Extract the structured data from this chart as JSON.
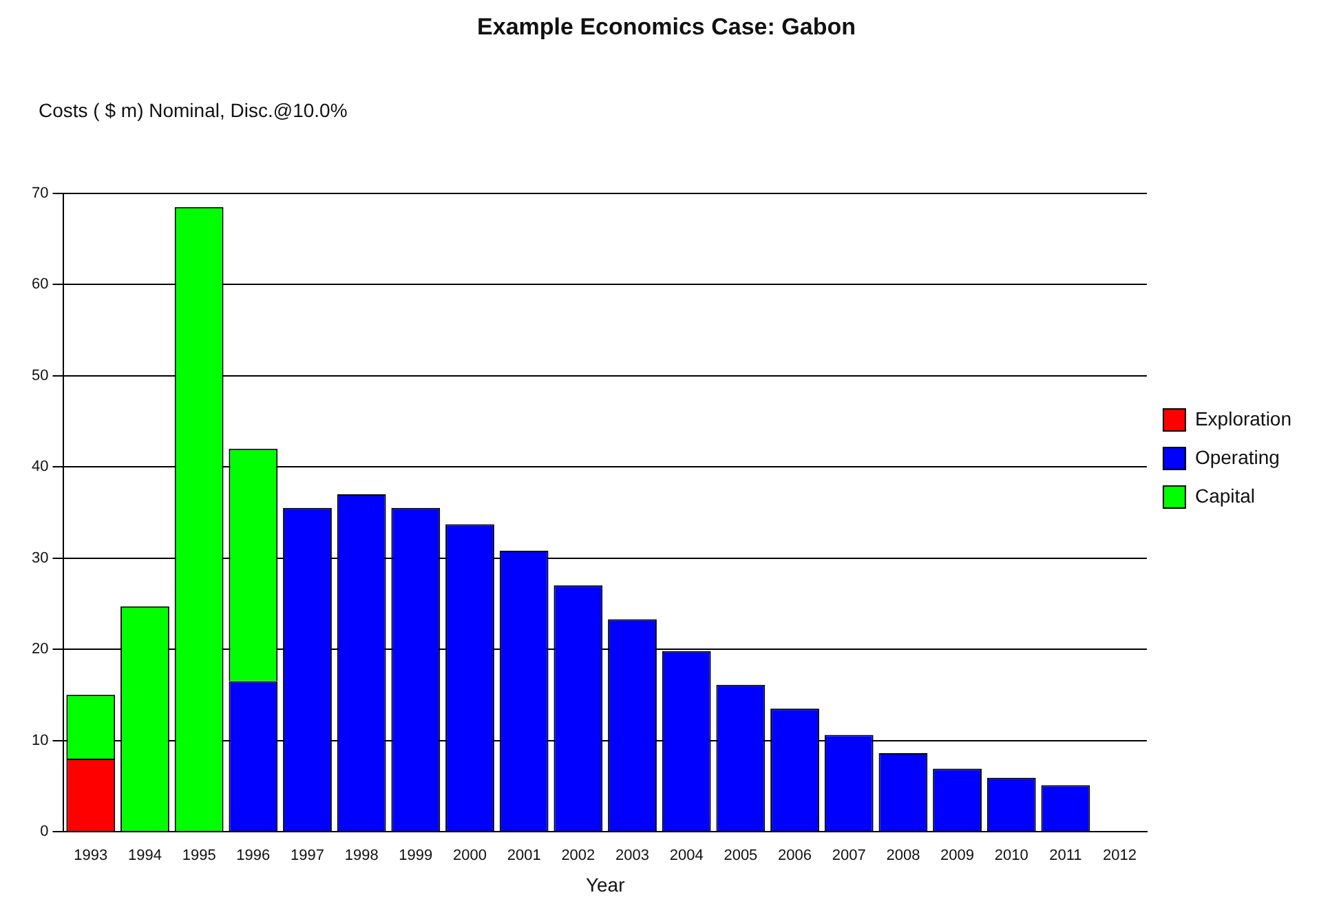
{
  "chart_data": {
    "type": "bar",
    "title": "Example Economics Case: Gabon",
    "subtitle": "Costs ( $ m) Nominal, Disc.@10.0%",
    "xlabel": "Year",
    "categories": [
      "1993",
      "1994",
      "1995",
      "1996",
      "1997",
      "1998",
      "1999",
      "2000",
      "2001",
      "2002",
      "2003",
      "2004",
      "2005",
      "2006",
      "2007",
      "2008",
      "2009",
      "2010",
      "2011",
      "2012"
    ],
    "stacked": true,
    "series": [
      {
        "name": "Exploration",
        "color": "#ff0000",
        "values": [
          8,
          0,
          0,
          0,
          0,
          0,
          0,
          0,
          0,
          0,
          0,
          0,
          0,
          0,
          0,
          0,
          0,
          0,
          0,
          0
        ]
      },
      {
        "name": "Operating",
        "color": "#0000ff",
        "values": [
          0,
          0,
          0,
          16.5,
          35.5,
          37,
          35.5,
          33.7,
          30.8,
          27,
          23.3,
          19.8,
          16.1,
          13.5,
          10.6,
          8.6,
          6.9,
          5.9,
          5.1,
          0
        ]
      },
      {
        "name": "Capital",
        "color": "#00ff00",
        "values": [
          7,
          24.7,
          68.5,
          25.5,
          0,
          0,
          0,
          0,
          0,
          0,
          0,
          0,
          0,
          0,
          0,
          0,
          0,
          0,
          0,
          0
        ]
      }
    ],
    "ylim": [
      0,
      70
    ],
    "yticks": [
      0,
      10,
      20,
      30,
      40,
      50,
      60,
      70
    ],
    "grid": "y",
    "legend": "right"
  }
}
